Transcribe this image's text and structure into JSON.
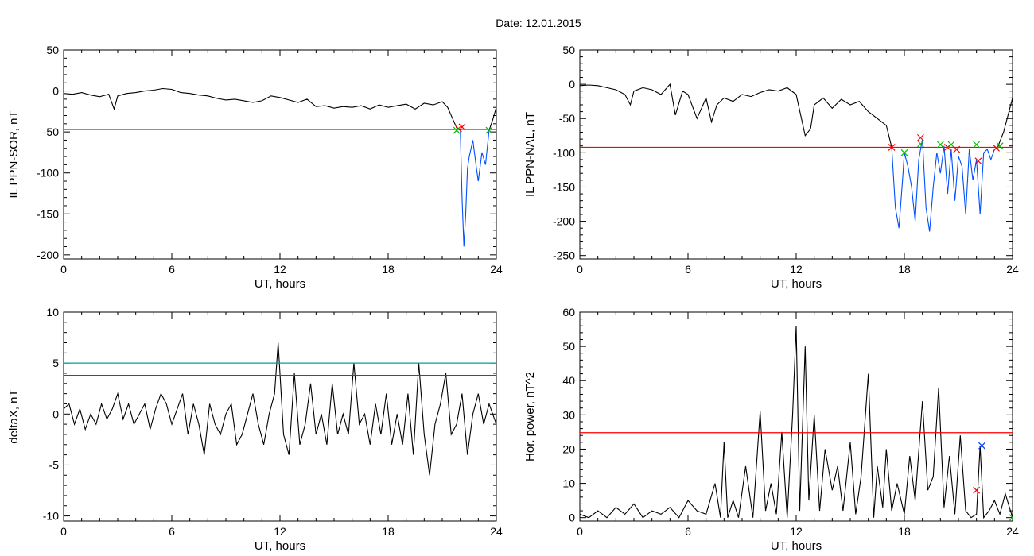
{
  "page": {
    "title": "Date:  12.01.2015"
  },
  "colors": {
    "trace": "#000000",
    "threshold": "#ff0000",
    "substorm_segment": "#0050ff",
    "threshold2": "#00a0a0",
    "marker_red": "#ff0000",
    "marker_green": "#00c000",
    "marker_blue": "#0040ff"
  },
  "chart_data": [
    {
      "id": "sor",
      "type": "line",
      "xlabel": "UT, hours",
      "ylabel": "IL PPN-SOR, nT",
      "xlim": [
        0,
        24
      ],
      "ylim": [
        -205,
        50
      ],
      "xticks": [
        0,
        6,
        12,
        18,
        24
      ],
      "yticks": [
        -200,
        -150,
        -100,
        -50,
        0,
        50
      ],
      "thresholds": [
        {
          "y": -47,
          "color": "#ff0000"
        }
      ],
      "series": [
        {
          "color": "#000000",
          "x": [
            0,
            0.5,
            1,
            1.5,
            2,
            2.5,
            2.8,
            3,
            3.5,
            4,
            4.5,
            5,
            5.5,
            6,
            6.5,
            7,
            7.5,
            8,
            8.5,
            9,
            9.5,
            10,
            10.5,
            11,
            11.5,
            12,
            12.5,
            13,
            13.5,
            14,
            14.5,
            15,
            15.5,
            16,
            16.5,
            17,
            17.5,
            18,
            18.5,
            19,
            19.5,
            20,
            20.5,
            21,
            21.3,
            21.6,
            21.8,
            22.0
          ],
          "y": [
            -3,
            -4,
            -2,
            -5,
            -7,
            -4,
            -22,
            -6,
            -3,
            -2,
            0,
            1,
            3,
            2,
            -2,
            -3,
            -5,
            -6,
            -9,
            -11,
            -10,
            -12,
            -14,
            -12,
            -6,
            -8,
            -11,
            -14,
            -10,
            -19,
            -18,
            -21,
            -19,
            -20,
            -18,
            -22,
            -17,
            -20,
            -18,
            -16,
            -22,
            -15,
            -17,
            -13,
            -20,
            -35,
            -45,
            -47
          ]
        },
        {
          "color": "#0050ff",
          "x": [
            22.0,
            22.1,
            22.2,
            22.3,
            22.4,
            22.5,
            22.7,
            22.9,
            23.0,
            23.2,
            23.4,
            23.6
          ],
          "y": [
            -47,
            -130,
            -190,
            -150,
            -95,
            -80,
            -60,
            -95,
            -110,
            -75,
            -90,
            -48
          ]
        },
        {
          "color": "#000000",
          "x": [
            23.6,
            23.8,
            24
          ],
          "y": [
            -48,
            -35,
            -20
          ]
        }
      ],
      "markers": [
        {
          "x": 21.9,
          "y": -46,
          "color": "#ff0000"
        },
        {
          "x": 22.1,
          "y": -44,
          "color": "#ff0000"
        },
        {
          "x": 21.8,
          "y": -48,
          "color": "#00c000"
        },
        {
          "x": 23.6,
          "y": -48,
          "color": "#00c000"
        }
      ]
    },
    {
      "id": "nal",
      "type": "line",
      "xlabel": "UT, hours",
      "ylabel": "IL PPN-NAL, nT",
      "xlim": [
        0,
        24
      ],
      "ylim": [
        -255,
        50
      ],
      "xticks": [
        0,
        6,
        12,
        18,
        24
      ],
      "yticks": [
        -250,
        -200,
        -150,
        -100,
        -50,
        0,
        50
      ],
      "thresholds": [
        {
          "y": -92,
          "color": "#ff0000"
        }
      ],
      "series": [
        {
          "color": "#000000",
          "x": [
            0,
            0.5,
            1,
            1.5,
            2,
            2.5,
            2.8,
            3,
            3.5,
            4,
            4.5,
            5,
            5.3,
            5.7,
            6,
            6.5,
            7,
            7.3,
            7.6,
            8,
            8.5,
            9,
            9.5,
            10,
            10.5,
            11,
            11.5,
            12,
            12.5,
            12.8,
            13,
            13.5,
            14,
            14.5,
            15,
            15.5,
            16,
            16.5,
            17,
            17.3
          ],
          "y": [
            -2,
            -1,
            -2,
            -5,
            -8,
            -15,
            -30,
            -10,
            -5,
            -8,
            -15,
            0,
            -45,
            -10,
            -15,
            -50,
            -20,
            -55,
            -30,
            -20,
            -25,
            -15,
            -18,
            -12,
            -8,
            -10,
            -5,
            -15,
            -75,
            -65,
            -30,
            -20,
            -35,
            -22,
            -30,
            -25,
            -40,
            -50,
            -60,
            -92
          ]
        },
        {
          "color": "#0050ff",
          "x": [
            17.3,
            17.5,
            17.7,
            17.9,
            18.0,
            18.2,
            18.4,
            18.6,
            18.8,
            19.0,
            19.2,
            19.4,
            19.6,
            19.8,
            20.0,
            20.2,
            20.4,
            20.6,
            20.8,
            21.0,
            21.2,
            21.4,
            21.6,
            21.8,
            22.0,
            22.2,
            22.4,
            22.6,
            22.8,
            23.0,
            23.2
          ],
          "y": [
            -92,
            -180,
            -210,
            -140,
            -100,
            -120,
            -150,
            -200,
            -110,
            -80,
            -180,
            -215,
            -150,
            -100,
            -130,
            -90,
            -160,
            -95,
            -170,
            -105,
            -120,
            -190,
            -95,
            -140,
            -110,
            -190,
            -100,
            -95,
            -110,
            -95,
            -90
          ]
        },
        {
          "color": "#000000",
          "x": [
            23.2,
            23.5,
            23.8,
            24
          ],
          "y": [
            -90,
            -70,
            -40,
            -20
          ]
        }
      ],
      "markers": [
        {
          "x": 17.3,
          "y": -92,
          "color": "#ff0000"
        },
        {
          "x": 18.9,
          "y": -78,
          "color": "#ff0000"
        },
        {
          "x": 20.4,
          "y": -92,
          "color": "#ff0000"
        },
        {
          "x": 20.9,
          "y": -95,
          "color": "#ff0000"
        },
        {
          "x": 22.1,
          "y": -112,
          "color": "#ff0000"
        },
        {
          "x": 23.1,
          "y": -93,
          "color": "#ff0000"
        },
        {
          "x": 18.0,
          "y": -100,
          "color": "#00c000"
        },
        {
          "x": 18.9,
          "y": -87,
          "color": "#00c000"
        },
        {
          "x": 20.0,
          "y": -88,
          "color": "#00c000"
        },
        {
          "x": 20.6,
          "y": -88,
          "color": "#00c000"
        },
        {
          "x": 22.0,
          "y": -88,
          "color": "#00c000"
        },
        {
          "x": 23.3,
          "y": -90,
          "color": "#00c000"
        }
      ]
    },
    {
      "id": "deltax",
      "type": "line",
      "xlabel": "UT, hours",
      "ylabel": "deltaX, nT",
      "xlim": [
        0,
        24
      ],
      "ylim": [
        -10.5,
        10
      ],
      "xticks": [
        0,
        6,
        12,
        18,
        24
      ],
      "yticks": [
        -10,
        -5,
        0,
        5,
        10
      ],
      "thresholds": [
        {
          "y": 5.0,
          "color": "#00a0a0"
        },
        {
          "y": 3.8,
          "color": "#ff0000"
        }
      ],
      "series": [
        {
          "color": "#000000",
          "x": [
            0,
            0.3,
            0.6,
            0.9,
            1.2,
            1.5,
            1.8,
            2.1,
            2.4,
            2.7,
            3.0,
            3.3,
            3.6,
            3.9,
            4.2,
            4.5,
            4.8,
            5.1,
            5.4,
            5.7,
            6.0,
            6.3,
            6.6,
            6.9,
            7.2,
            7.5,
            7.8,
            8.1,
            8.4,
            8.7,
            9.0,
            9.3,
            9.6,
            9.9,
            10.2,
            10.5,
            10.8,
            11.1,
            11.4,
            11.7,
            11.9,
            12.2,
            12.5,
            12.8,
            13.1,
            13.4,
            13.7,
            14.0,
            14.3,
            14.6,
            14.9,
            15.2,
            15.5,
            15.8,
            16.1,
            16.4,
            16.7,
            17.0,
            17.3,
            17.6,
            17.9,
            18.2,
            18.5,
            18.8,
            19.1,
            19.4,
            19.7,
            20.0,
            20.3,
            20.6,
            20.9,
            21.2,
            21.5,
            21.8,
            22.1,
            22.4,
            22.7,
            23.0,
            23.3,
            23.6,
            24
          ],
          "y": [
            0.5,
            1,
            -1,
            0.5,
            -1.5,
            0,
            -1,
            1,
            -0.5,
            0.5,
            2,
            -0.5,
            1,
            -1,
            0,
            1,
            -1.5,
            0.5,
            2,
            1,
            -1,
            0.5,
            2,
            -2,
            1,
            -1,
            -4,
            1,
            -1,
            -2,
            0,
            1,
            -3,
            -2,
            0,
            2,
            -1,
            -3,
            0,
            2,
            7,
            -2,
            -4,
            4,
            -3,
            -1,
            3,
            -2,
            0,
            -3,
            3,
            -2,
            0,
            -2,
            5,
            -1,
            0,
            -3,
            1,
            -2,
            2,
            -3,
            0,
            -3,
            2,
            -4,
            5,
            -2,
            -6,
            -1,
            1,
            4,
            -2,
            -1,
            2,
            -4,
            0,
            2,
            -1,
            1,
            -1
          ]
        }
      ],
      "markers": []
    },
    {
      "id": "power",
      "type": "line",
      "xlabel": "UT, hours",
      "ylabel": "Hor. power, nT^2",
      "xlim": [
        0,
        24
      ],
      "ylim": [
        -1,
        60
      ],
      "xticks": [
        0,
        6,
        12,
        18,
        24
      ],
      "yticks": [
        0,
        10,
        20,
        30,
        40,
        50,
        60
      ],
      "thresholds": [
        {
          "y": 24.8,
          "color": "#ff0000"
        }
      ],
      "series": [
        {
          "color": "#000000",
          "x": [
            0,
            0.5,
            1,
            1.5,
            2,
            2.5,
            3,
            3.5,
            4,
            4.5,
            5,
            5.5,
            6,
            6.5,
            7,
            7.5,
            7.8,
            8.0,
            8.2,
            8.5,
            8.8,
            9.2,
            9.6,
            10.0,
            10.3,
            10.6,
            10.9,
            11.2,
            11.5,
            11.8,
            12.0,
            12.2,
            12.5,
            12.7,
            13.0,
            13.3,
            13.6,
            14.0,
            14.3,
            14.6,
            15.0,
            15.3,
            15.6,
            16.0,
            16.3,
            16.5,
            16.8,
            17.0,
            17.3,
            17.6,
            18.0,
            18.3,
            18.6,
            19.0,
            19.3,
            19.6,
            19.9,
            20.2,
            20.5,
            20.8,
            21.1,
            21.4,
            21.7,
            22.0,
            22.2,
            22.4,
            22.7,
            23.0,
            23.3,
            23.6,
            24
          ],
          "y": [
            1,
            0,
            2,
            0,
            3,
            1,
            4,
            0,
            2,
            1,
            3,
            0,
            5,
            2,
            1,
            10,
            0,
            22,
            0,
            5,
            0,
            15,
            0,
            31,
            2,
            10,
            1,
            25,
            0,
            30,
            56,
            2,
            50,
            5,
            30,
            2,
            20,
            8,
            15,
            2,
            22,
            1,
            12,
            42,
            0,
            15,
            3,
            20,
            2,
            10,
            1,
            18,
            5,
            34,
            8,
            12,
            38,
            3,
            18,
            1,
            24,
            2,
            0,
            1,
            21,
            0,
            2,
            5,
            1,
            7,
            0
          ]
        }
      ],
      "markers": [
        {
          "x": 22.0,
          "y": 8,
          "color": "#ff0000"
        },
        {
          "x": 22.3,
          "y": 21,
          "color": "#0040ff"
        },
        {
          "x": 24.0,
          "y": 0,
          "color": "#00c000"
        }
      ]
    }
  ]
}
